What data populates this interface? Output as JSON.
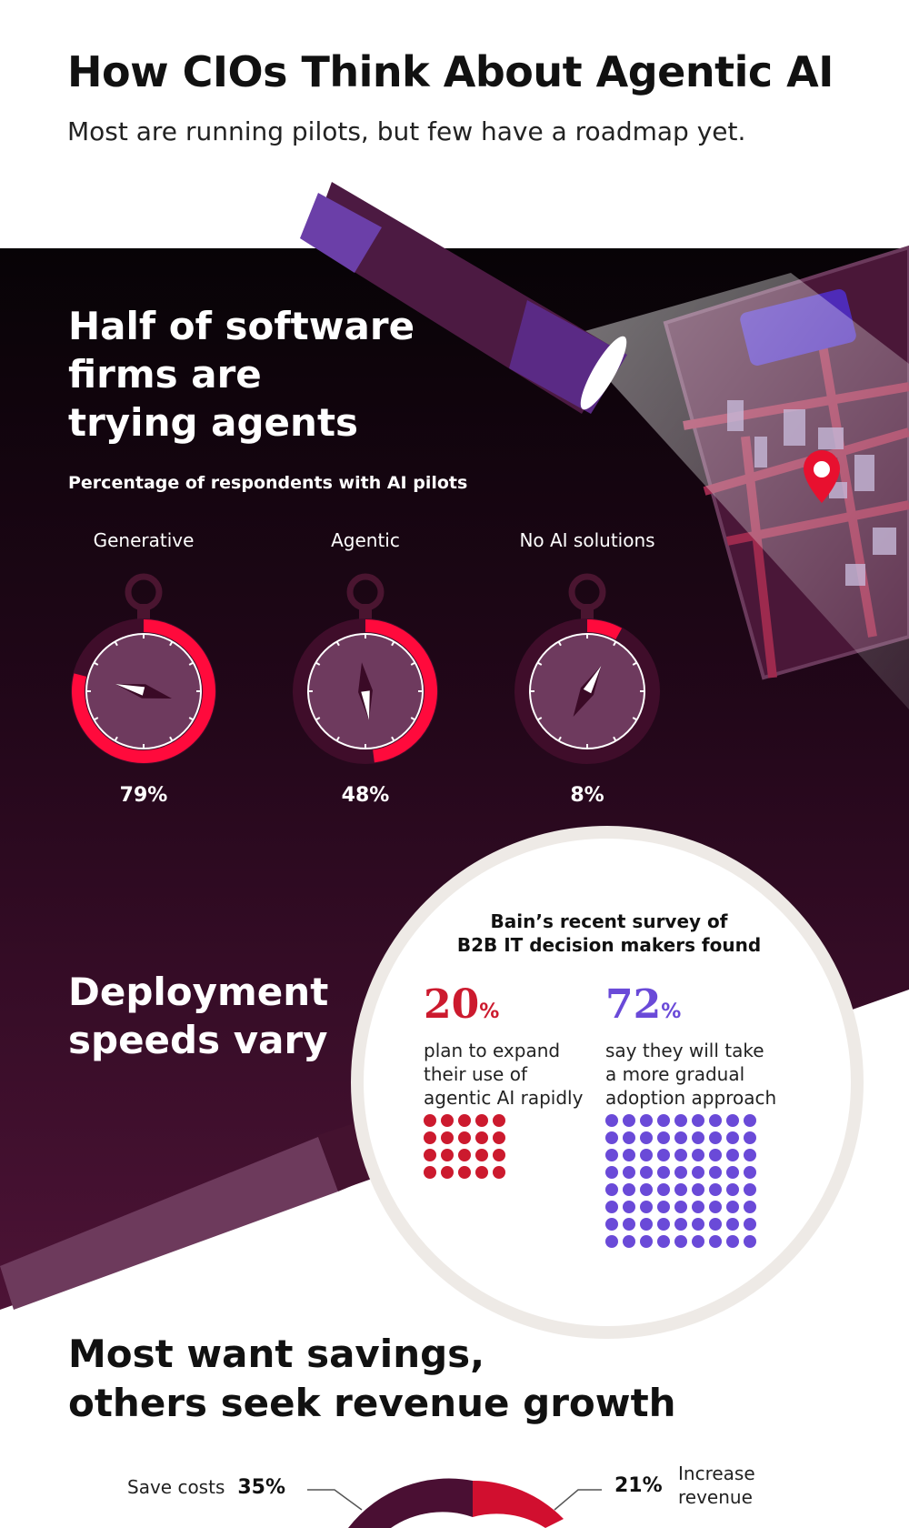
{
  "header": {
    "title": "How CIOs Think About Agentic AI",
    "subtitle": "Most are running pilots, but few have a roadmap yet."
  },
  "section1": {
    "heading_lines": [
      "Half of software",
      "firms are",
      "trying agents"
    ]
  },
  "section2": {
    "heading_lines": [
      "Deployment",
      "speeds vary"
    ]
  },
  "survey": {
    "heading_lines": [
      "Bain’s recent survey of",
      "B2B IT decision makers found"
    ],
    "stats": [
      {
        "value": 20,
        "number": "20",
        "unit": "%",
        "text_lines": [
          "plan to expand",
          "their use of",
          "agentic AI rapidly"
        ],
        "color": "#cc1a2e",
        "dot_count": 20
      },
      {
        "value": 72,
        "number": "72",
        "unit": "%",
        "text_lines": [
          "say they will take",
          "a more gradual",
          "adoption approach"
        ],
        "color": "#6a4ad8",
        "dot_count": 72
      }
    ]
  },
  "section3": {
    "heading_lines": [
      "Most want savings,",
      "others seek revenue growth"
    ],
    "legend_left": {
      "label": "Save costs",
      "value": "35%"
    },
    "legend_right": {
      "value": "21%",
      "label_lines": [
        "Increase",
        "revenue"
      ]
    }
  },
  "colors": {
    "dark_bg": "#0b0509",
    "plum": "#2e0a1f",
    "accent_red": "#ff0a3c",
    "dial_face": "#6e3a5e",
    "survey_red": "#cc1a2e",
    "survey_purple": "#6a4ad8"
  },
  "icons": [
    "flashlight-icon",
    "city-map-icon",
    "location-pin-icon",
    "stopwatch-icon"
  ],
  "chart_data": [
    {
      "type": "pie",
      "title": "Percentage of respondents with AI pilots",
      "categories": [
        "Generative",
        "Agentic",
        "No AI solutions"
      ],
      "values": [
        79,
        48,
        8
      ],
      "labels": [
        "79%",
        "48%",
        "8%"
      ],
      "unit": "%",
      "ylim": [
        0,
        100
      ]
    },
    {
      "type": "pie",
      "categories": [
        "Save costs",
        "Increase revenue"
      ],
      "values": [
        35,
        21
      ],
      "labels": [
        "35%",
        "21%"
      ],
      "unit": "%"
    }
  ]
}
